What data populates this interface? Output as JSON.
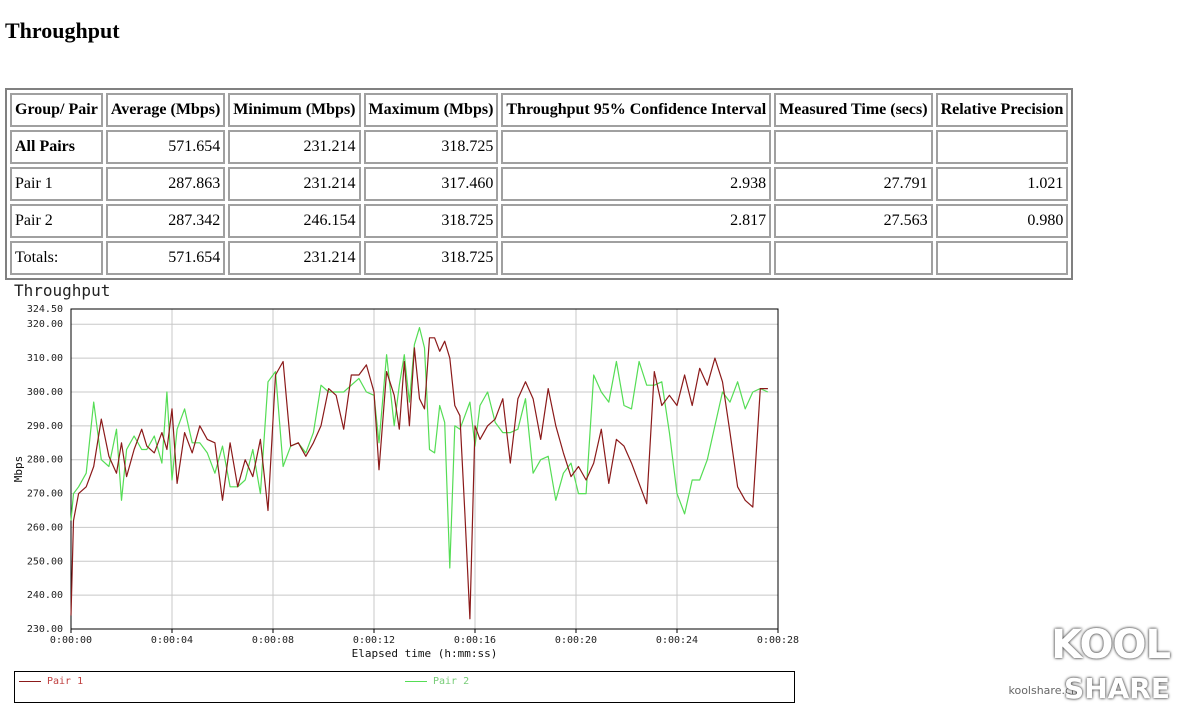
{
  "page_title": "Throughput",
  "table": {
    "headers": [
      "Group/ Pair",
      "Average (Mbps)",
      "Minimum (Mbps)",
      "Maximum (Mbps)",
      "Throughput 95% Confidence Interval",
      "Measured Time (secs)",
      "Relative Precision"
    ],
    "rows": [
      [
        "All Pairs",
        "571.654",
        "231.214",
        "318.725",
        "",
        "",
        ""
      ],
      [
        "Pair 1",
        "287.863",
        "231.214",
        "317.460",
        "2.938",
        "27.791",
        "1.021"
      ],
      [
        "Pair 2",
        "287.342",
        "246.154",
        "318.725",
        "2.817",
        "27.563",
        "0.980"
      ],
      [
        "Totals:",
        "571.654",
        "231.214",
        "318.725",
        "",
        "",
        ""
      ]
    ]
  },
  "chart_data": {
    "type": "line",
    "title": "Throughput",
    "xlabel": "Elapsed time (h:mm:ss)",
    "ylabel": "Mbps",
    "xlim": [
      0,
      28
    ],
    "ylim": [
      230,
      324.5
    ],
    "yticks": [
      "324.50",
      "320.00",
      "310.00",
      "300.00",
      "290.00",
      "280.00",
      "270.00",
      "260.00",
      "250.00",
      "240.00",
      "230.00"
    ],
    "xticks": [
      "0:00:00",
      "0:00:04",
      "0:00:08",
      "0:00:12",
      "0:00:16",
      "0:00:20",
      "0:00:24",
      "0:00:28"
    ],
    "grid": true,
    "legend": "bottom",
    "series": [
      {
        "name": "Pair 1",
        "color": "#8b1a1a",
        "x": [
          0.0,
          0.1,
          0.3,
          0.6,
          0.9,
          1.2,
          1.5,
          1.8,
          2.0,
          2.2,
          2.5,
          2.8,
          3.0,
          3.3,
          3.6,
          3.8,
          4.0,
          4.2,
          4.5,
          4.8,
          5.1,
          5.4,
          5.7,
          6.0,
          6.3,
          6.6,
          6.9,
          7.2,
          7.5,
          7.8,
          8.1,
          8.4,
          8.7,
          9.0,
          9.3,
          9.6,
          9.9,
          10.2,
          10.5,
          10.8,
          11.1,
          11.4,
          11.7,
          12.0,
          12.2,
          12.5,
          12.8,
          13.0,
          13.2,
          13.4,
          13.6,
          13.8,
          14.0,
          14.2,
          14.4,
          14.6,
          14.8,
          15.0,
          15.2,
          15.4,
          15.6,
          15.8,
          16.0,
          16.2,
          16.5,
          16.8,
          17.1,
          17.4,
          17.7,
          18.0,
          18.3,
          18.6,
          18.9,
          19.2,
          19.5,
          19.8,
          20.1,
          20.4,
          20.7,
          21.0,
          21.3,
          21.6,
          21.9,
          22.2,
          22.5,
          22.8,
          23.1,
          23.4,
          23.7,
          24.0,
          24.3,
          24.6,
          24.9,
          25.2,
          25.5,
          25.8,
          26.1,
          26.4,
          26.7,
          27.0,
          27.3,
          27.6
        ],
        "values": [
          234,
          262,
          270,
          272,
          278,
          292,
          281,
          276,
          285,
          275,
          283,
          289,
          284,
          282,
          288,
          283,
          295,
          273,
          288,
          282,
          290,
          286,
          285,
          268,
          285,
          272,
          280,
          275,
          286,
          265,
          305,
          309,
          284,
          285,
          281,
          285,
          290,
          301,
          299,
          289,
          305,
          305,
          308,
          300,
          277,
          306,
          299,
          289,
          309,
          290,
          313,
          298,
          295,
          316,
          316,
          312,
          315,
          310,
          296,
          293,
          264,
          233,
          290,
          286,
          290,
          292,
          298,
          279,
          298,
          303,
          298,
          286,
          301,
          290,
          282,
          275,
          278,
          274,
          279,
          289,
          273,
          286,
          284,
          279,
          273,
          267,
          306,
          296,
          299,
          296,
          305,
          296,
          307,
          302,
          310,
          303,
          288,
          272,
          268,
          266,
          301,
          301
        ]
      },
      {
        "name": "Pair 2",
        "color": "#55dd55",
        "x": [
          0.0,
          0.1,
          0.3,
          0.6,
          0.9,
          1.2,
          1.5,
          1.8,
          2.0,
          2.2,
          2.5,
          2.8,
          3.0,
          3.3,
          3.6,
          3.8,
          4.0,
          4.2,
          4.5,
          4.8,
          5.1,
          5.4,
          5.7,
          6.0,
          6.3,
          6.6,
          6.9,
          7.2,
          7.5,
          7.8,
          8.1,
          8.4,
          8.7,
          9.0,
          9.3,
          9.6,
          9.9,
          10.2,
          10.5,
          10.8,
          11.1,
          11.4,
          11.7,
          12.0,
          12.2,
          12.5,
          12.8,
          13.0,
          13.2,
          13.4,
          13.6,
          13.8,
          14.0,
          14.2,
          14.4,
          14.6,
          14.8,
          15.0,
          15.2,
          15.4,
          15.6,
          15.8,
          16.0,
          16.2,
          16.5,
          16.8,
          17.1,
          17.4,
          17.7,
          18.0,
          18.3,
          18.6,
          18.9,
          19.2,
          19.5,
          19.8,
          20.1,
          20.4,
          20.7,
          21.0,
          21.3,
          21.6,
          21.9,
          22.2,
          22.5,
          22.8,
          23.1,
          23.4,
          23.7,
          24.0,
          24.3,
          24.6,
          24.9,
          25.2,
          25.5,
          25.8,
          26.1,
          26.4,
          26.7,
          27.0,
          27.3,
          27.6
        ],
        "values": [
          262,
          270,
          272,
          276,
          297,
          280,
          278,
          289,
          268,
          283,
          287,
          283,
          283,
          287,
          279,
          300,
          274,
          289,
          295,
          285,
          285,
          282,
          276,
          284,
          272,
          272,
          274,
          283,
          270,
          303,
          306,
          278,
          284,
          285,
          282,
          288,
          302,
          300,
          300,
          300,
          302,
          304,
          300,
          299,
          285,
          311,
          290,
          302,
          311,
          297,
          314,
          319,
          313,
          283,
          282,
          296,
          291,
          248,
          290,
          289,
          293,
          297,
          284,
          296,
          300,
          291,
          288,
          288,
          289,
          298,
          276,
          280,
          281,
          268,
          276,
          279,
          270,
          270,
          305,
          300,
          297,
          309,
          296,
          295,
          309,
          302,
          302,
          303,
          288,
          270,
          264,
          274,
          274,
          280,
          290,
          300,
          297,
          303,
          295,
          300,
          301,
          300
        ]
      }
    ]
  },
  "watermark": {
    "logo_top": "KOOL",
    "logo_bottom": "SHARE",
    "site": "koolshare.cn"
  }
}
